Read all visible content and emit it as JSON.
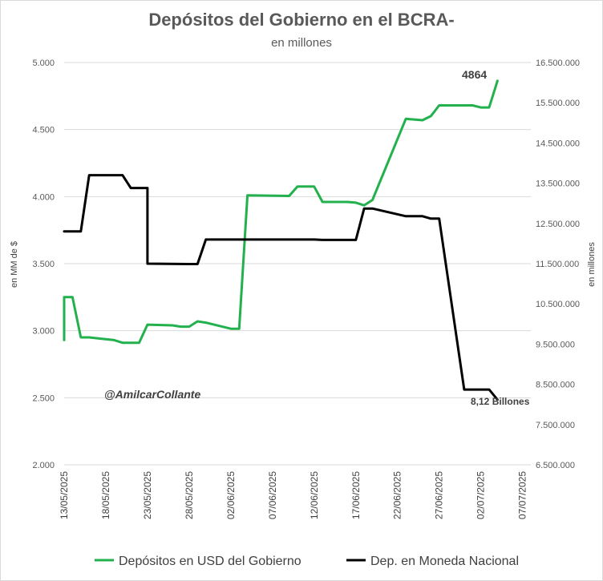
{
  "chart_data": {
    "type": "line",
    "title": "Depósitos del Gobierno en el BCRA-",
    "subtitle": "en millones",
    "ylabel_left": "en MM de $",
    "ylabel_right": "en millones",
    "ylim_left": [
      2000,
      5000
    ],
    "ylim_right": [
      6500000,
      16500000
    ],
    "yticks_left": [
      "5.000",
      "4.500",
      "4.000",
      "3.500",
      "3.000",
      "2.500",
      "2.000"
    ],
    "yticks_right": [
      "16.500.000",
      "15.500.000",
      "14.500.000",
      "13.500.000",
      "12.500.000",
      "11.500.000",
      "10.500.000",
      "9.500.000",
      "8.500.000",
      "7.500.000",
      "6.500.000"
    ],
    "xticks": [
      "13/05/2025",
      "18/05/2025",
      "23/05/2025",
      "28/05/2025",
      "02/06/2025",
      "07/06/2025",
      "12/06/2025",
      "17/06/2025",
      "22/06/2025",
      "27/06/2025",
      "02/07/2025",
      "07/07/2025"
    ],
    "xlim": [
      "13/05/2025",
      "08/07/2025"
    ],
    "grid": true,
    "legend_position": "bottom",
    "series": [
      {
        "name": "Depósitos en USD del Gobierno",
        "axis": "left",
        "color": "#22b14c",
        "points": [
          [
            "13/05/2025",
            2930
          ],
          [
            "13/05/2025",
            3040
          ],
          [
            "13/05/2025",
            3250
          ],
          [
            "14/05/2025",
            3250
          ],
          [
            "15/05/2025",
            2950
          ],
          [
            "16/05/2025",
            2950
          ],
          [
            "19/05/2025",
            2930
          ],
          [
            "20/05/2025",
            2910
          ],
          [
            "21/05/2025",
            2910
          ],
          [
            "22/05/2025",
            2910
          ],
          [
            "23/05/2025",
            3045
          ],
          [
            "26/05/2025",
            3040
          ],
          [
            "27/05/2025",
            3030
          ],
          [
            "28/05/2025",
            3030
          ],
          [
            "29/05/2025",
            3070
          ],
          [
            "30/05/2025",
            3060
          ],
          [
            "02/06/2025",
            3015
          ],
          [
            "03/06/2025",
            3015
          ],
          [
            "04/06/2025",
            4010
          ],
          [
            "09/06/2025",
            4005
          ],
          [
            "10/06/2025",
            4075
          ],
          [
            "11/06/2025",
            4075
          ],
          [
            "12/06/2025",
            4075
          ],
          [
            "13/06/2025",
            3960
          ],
          [
            "16/06/2025",
            3960
          ],
          [
            "17/06/2025",
            3955
          ],
          [
            "18/06/2025",
            3935
          ],
          [
            "19/06/2025",
            3975
          ],
          [
            "23/06/2025",
            4580
          ],
          [
            "24/06/2025",
            4575
          ],
          [
            "25/06/2025",
            4570
          ],
          [
            "26/06/2025",
            4600
          ],
          [
            "27/06/2025",
            4680
          ],
          [
            "30/06/2025",
            4680
          ],
          [
            "01/07/2025",
            4680
          ],
          [
            "02/07/2025",
            4665
          ],
          [
            "03/07/2025",
            4665
          ],
          [
            "04/07/2025",
            4864
          ]
        ]
      },
      {
        "name": "Dep. en Moneda Nacional",
        "axis": "right",
        "color": "#000000",
        "points": [
          [
            "13/05/2025",
            12300000
          ],
          [
            "14/05/2025",
            12300000
          ],
          [
            "15/05/2025",
            12300000
          ],
          [
            "16/05/2025",
            13700000
          ],
          [
            "19/05/2025",
            13700000
          ],
          [
            "20/05/2025",
            13700000
          ],
          [
            "21/05/2025",
            13380000
          ],
          [
            "22/05/2025",
            13380000
          ],
          [
            "23/05/2025",
            13380000
          ],
          [
            "23/05/2025",
            11500000
          ],
          [
            "28/05/2025",
            11490000
          ],
          [
            "29/05/2025",
            11490000
          ],
          [
            "30/05/2025",
            12100000
          ],
          [
            "02/06/2025",
            12100000
          ],
          [
            "03/06/2025",
            12100000
          ],
          [
            "12/06/2025",
            12100000
          ],
          [
            "13/06/2025",
            12090000
          ],
          [
            "17/06/2025",
            12090000
          ],
          [
            "18/06/2025",
            12870000
          ],
          [
            "19/06/2025",
            12870000
          ],
          [
            "23/06/2025",
            12680000
          ],
          [
            "25/06/2025",
            12680000
          ],
          [
            "26/06/2025",
            12620000
          ],
          [
            "27/06/2025",
            12620000
          ],
          [
            "30/06/2025",
            8370000
          ],
          [
            "01/07/2025",
            8370000
          ],
          [
            "03/07/2025",
            8370000
          ],
          [
            "04/07/2025",
            8120000
          ]
        ]
      }
    ],
    "annotations": {
      "peak_label": "4864",
      "end_label": "8,12 Billones",
      "author": "@AmilcarCollante"
    }
  }
}
